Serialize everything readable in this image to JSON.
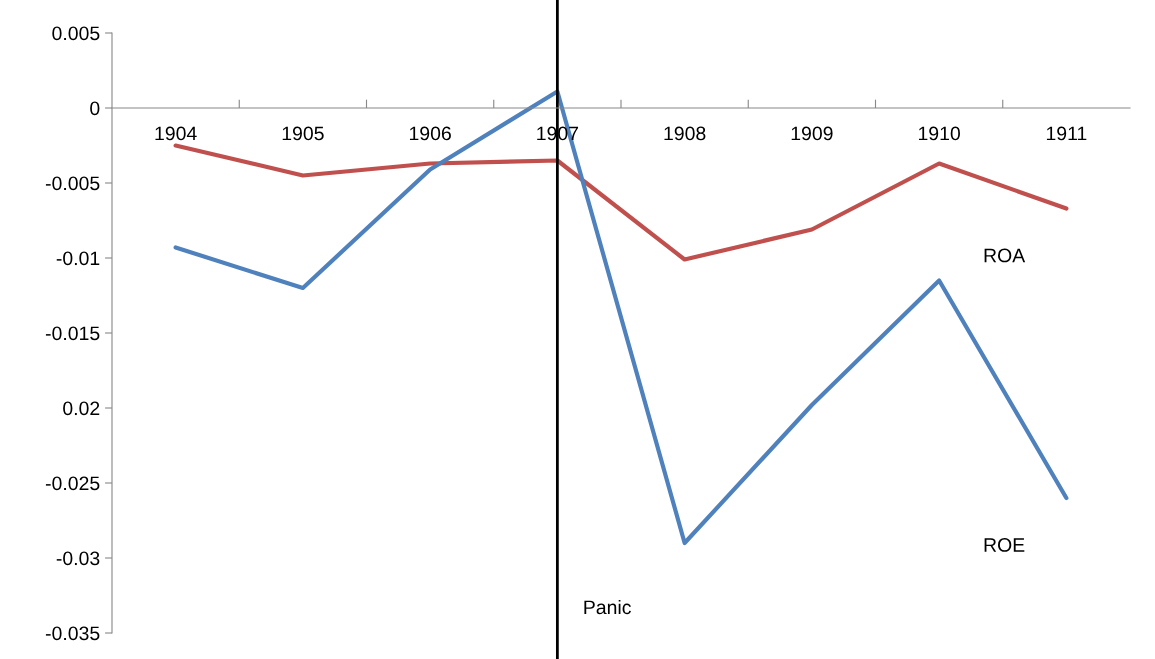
{
  "chart_data": {
    "type": "line",
    "categories": [
      "1904",
      "1905",
      "1906",
      "1907",
      "1908",
      "1909",
      "1910",
      "1911"
    ],
    "series": [
      {
        "name": "ROA",
        "color": "#c0504d",
        "values": [
          -0.0025,
          -0.0045,
          -0.0037,
          -0.0035,
          -0.0101,
          -0.0081,
          -0.0037,
          -0.0067
        ]
      },
      {
        "name": "ROE",
        "color": "#4f81bd",
        "values": [
          -0.0093,
          -0.012,
          -0.0041,
          0.0011,
          -0.029,
          -0.0198,
          -0.0115,
          -0.026
        ]
      }
    ],
    "ylim": [
      -0.035,
      0.005
    ],
    "yticks": [
      0.005,
      0,
      -0.005,
      -0.01,
      -0.015,
      {
        "value": -0.02,
        "label": "0.02"
      },
      -0.025,
      -0.03,
      -0.035
    ],
    "ref_lines": [
      {
        "axis": "x",
        "value": "1907",
        "label": "Panic",
        "color": "#000000"
      }
    ],
    "grid": false,
    "legend": false,
    "marker": "none",
    "line_style": "solid"
  }
}
